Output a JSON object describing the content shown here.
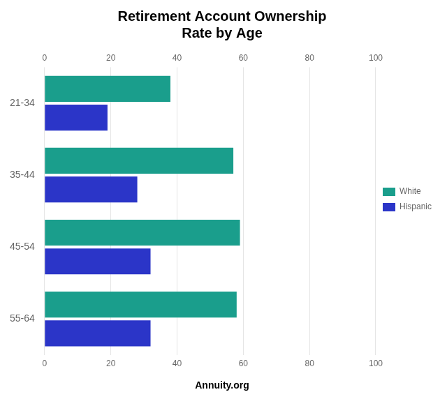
{
  "chart_data": {
    "type": "bar",
    "orientation": "horizontal",
    "title": "Retirement Account Ownership\nRate by Age",
    "categories": [
      "21-34",
      "35-44",
      "45-54",
      "55-64"
    ],
    "series": [
      {
        "name": "White",
        "color": "#1a9e8c",
        "values": [
          38,
          57,
          59,
          58
        ]
      },
      {
        "name": "Hispanic",
        "color": "#2b35c8",
        "values": [
          19,
          28,
          32,
          32
        ]
      }
    ],
    "xlim": [
      0,
      100
    ],
    "xticks": [
      0,
      20,
      40,
      60,
      80,
      100
    ],
    "grid": true,
    "legend": "right",
    "annotations": [
      "Annuity.org"
    ]
  }
}
